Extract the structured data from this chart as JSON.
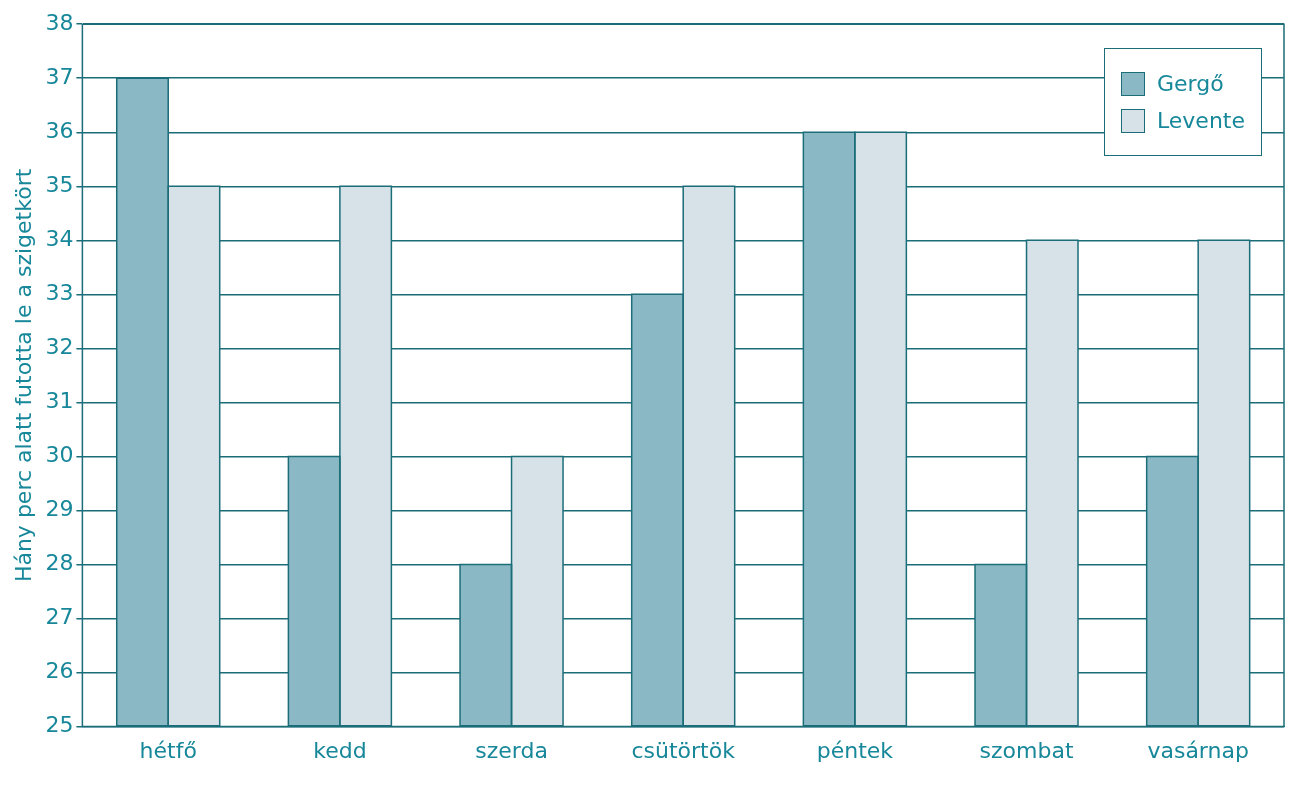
{
  "chart_data": {
    "type": "bar",
    "ylabel": "Hány perc alatt futotta le a szigetkört",
    "categories": [
      "hétfő",
      "kedd",
      "szerda",
      "csütörtök",
      "péntek",
      "szombat",
      "vasárnap"
    ],
    "series": [
      {
        "name": "Gergő",
        "color": "#8ab8c4",
        "values": [
          37,
          30,
          28,
          33,
          36,
          28,
          30
        ]
      },
      {
        "name": "Levente",
        "color": "#d6e2e8",
        "values": [
          35,
          35,
          30,
          35,
          36,
          34,
          34
        ]
      }
    ],
    "ylim": [
      25,
      38
    ],
    "yticks": [
      25,
      26,
      27,
      28,
      29,
      30,
      31,
      32,
      33,
      34,
      35,
      36,
      37,
      38
    ],
    "grid": "y",
    "legend": "top right"
  }
}
